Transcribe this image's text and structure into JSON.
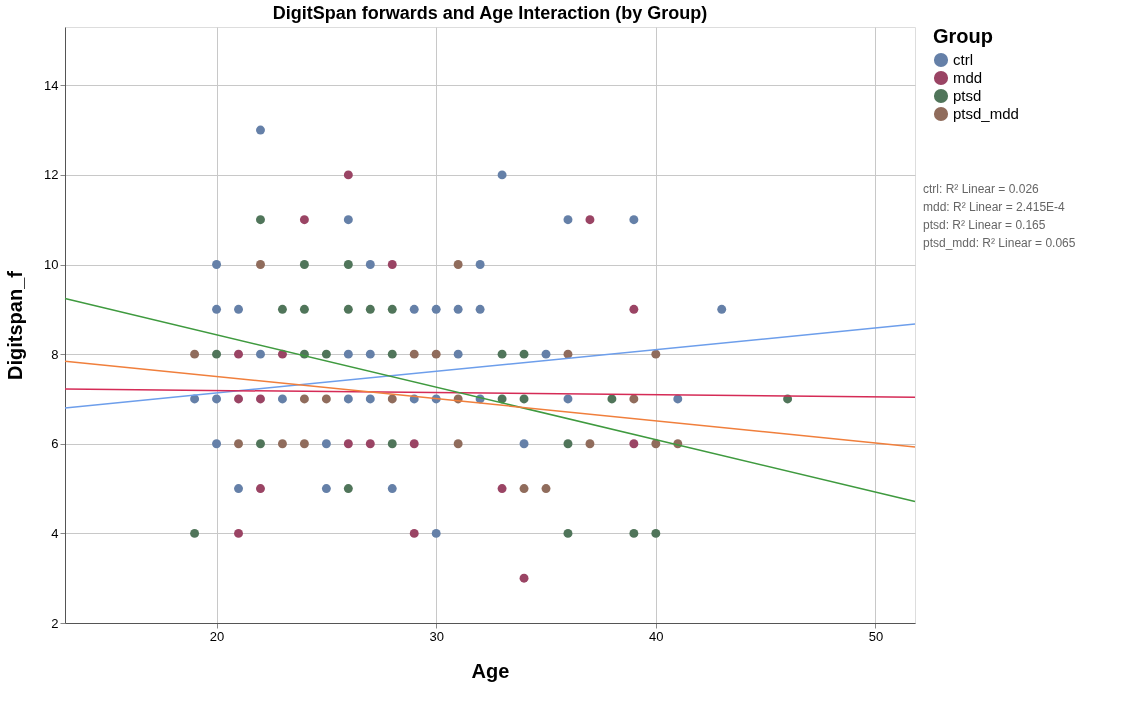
{
  "chart_data": {
    "type": "scatter",
    "title": "DigitSpan forwards and Age Interaction (by Group)",
    "xlabel": "Age",
    "ylabel": "Digitspan_f",
    "legend_title": "Group",
    "xlim": [
      13.1,
      51.8
    ],
    "xticks": [
      20,
      30,
      40,
      50
    ],
    "ylim": [
      2,
      15.3
    ],
    "yticks": [
      2,
      4,
      6,
      8,
      10,
      12,
      14
    ],
    "grid": true,
    "legend": "top right",
    "series": [
      {
        "name": "ctrl",
        "marker": "circle",
        "color": "#6580a8",
        "x": [
          22,
          33,
          26,
          36,
          39,
          20,
          27,
          32,
          20,
          21,
          29,
          30,
          31,
          32,
          43,
          22,
          26,
          27,
          35,
          31,
          19,
          20,
          23,
          26,
          27,
          29,
          30,
          32,
          36,
          41,
          20,
          25,
          34,
          21,
          25,
          28,
          30
        ],
        "values": [
          13,
          12,
          11,
          11,
          11,
          10,
          10,
          10,
          9,
          9,
          9,
          9,
          9,
          9,
          9,
          8,
          8,
          8,
          8,
          8,
          7,
          7,
          7,
          7,
          7,
          7,
          7,
          7,
          7,
          7,
          6,
          6,
          6,
          5,
          5,
          5,
          4
        ]
      },
      {
        "name": "mdd",
        "marker": "circle",
        "color": "#9a4464",
        "x": [
          26,
          24,
          37,
          28,
          39,
          21,
          23,
          21,
          22,
          26,
          27,
          29,
          39,
          22,
          33,
          21,
          29,
          34
        ],
        "values": [
          12,
          11,
          11,
          10,
          9,
          8,
          8,
          7,
          7,
          6,
          6,
          6,
          6,
          5,
          5,
          4,
          4,
          3
        ]
      },
      {
        "name": "ptsd",
        "marker": "circle",
        "color": "#50755a",
        "x": [
          22,
          24,
          26,
          23,
          24,
          26,
          27,
          28,
          20,
          24,
          25,
          28,
          33,
          34,
          33,
          34,
          38,
          46,
          22,
          28,
          36,
          26,
          19,
          36,
          39,
          40
        ],
        "values": [
          11,
          10,
          10,
          9,
          9,
          9,
          9,
          9,
          8,
          8,
          8,
          8,
          8,
          8,
          7,
          7,
          7,
          7,
          6,
          6,
          6,
          5,
          4,
          4,
          4,
          4
        ]
      },
      {
        "name": "ptsd_mdd",
        "marker": "circle",
        "color": "#906c5c",
        "x": [
          22,
          31,
          19,
          29,
          30,
          36,
          40,
          24,
          25,
          28,
          31,
          39,
          21,
          23,
          24,
          31,
          37,
          40,
          41,
          34,
          35
        ],
        "values": [
          10,
          10,
          8,
          8,
          8,
          8,
          8,
          7,
          7,
          7,
          7,
          7,
          6,
          6,
          6,
          6,
          6,
          6,
          6,
          5,
          5
        ]
      },
      {
        "type": "line",
        "marker": "none",
        "color": "#6d9eeb",
        "x": [
          13.1,
          51.8
        ],
        "values": [
          6.8,
          8.67
        ]
      },
      {
        "type": "line",
        "marker": "none",
        "color": "#d52b56",
        "x": [
          13.1,
          51.8
        ],
        "values": [
          7.22,
          7.04
        ]
      },
      {
        "type": "line",
        "marker": "none",
        "color": "#3f9a3f",
        "x": [
          13.1,
          51.8
        ],
        "values": [
          9.24,
          4.71
        ]
      },
      {
        "type": "line",
        "marker": "none",
        "color": "#f07f3c",
        "x": [
          13.1,
          51.8
        ],
        "values": [
          7.84,
          5.93
        ]
      }
    ],
    "annotations": [
      "ctrl: R² Linear = 0.026",
      "mdd: R² Linear = 2.415E-4",
      "ptsd: R² Linear = 0.165",
      "ptsd_mdd: R² Linear = 0.065"
    ]
  }
}
